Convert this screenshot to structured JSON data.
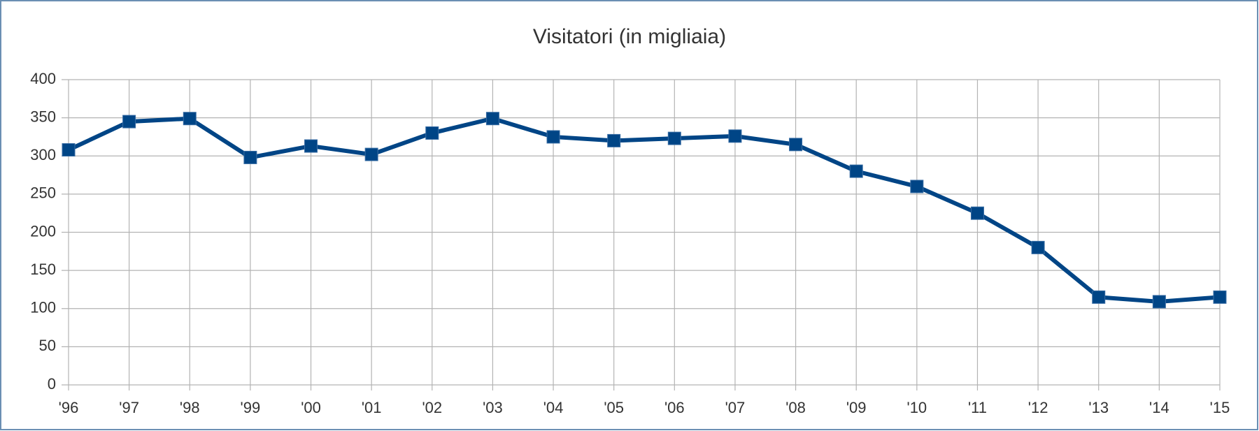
{
  "chart_data": {
    "type": "line",
    "title": "Visitatori (in migliaia)",
    "categories": [
      "'96",
      "'97",
      "'98",
      "'99",
      "'00",
      "'01",
      "'02",
      "'03",
      "'04",
      "'05",
      "'06",
      "'07",
      "'08",
      "'09",
      "'10",
      "'11",
      "'12",
      "'13",
      "'14",
      "'15"
    ],
    "values": [
      308,
      345,
      349,
      298,
      313,
      302,
      330,
      349,
      325,
      320,
      323,
      326,
      315,
      280,
      260,
      225,
      180,
      115,
      109,
      115
    ],
    "color": "#004586",
    "ylim": [
      0,
      400
    ],
    "yticks": [
      0,
      50,
      100,
      150,
      200,
      250,
      300,
      350,
      400
    ],
    "grid": true
  }
}
